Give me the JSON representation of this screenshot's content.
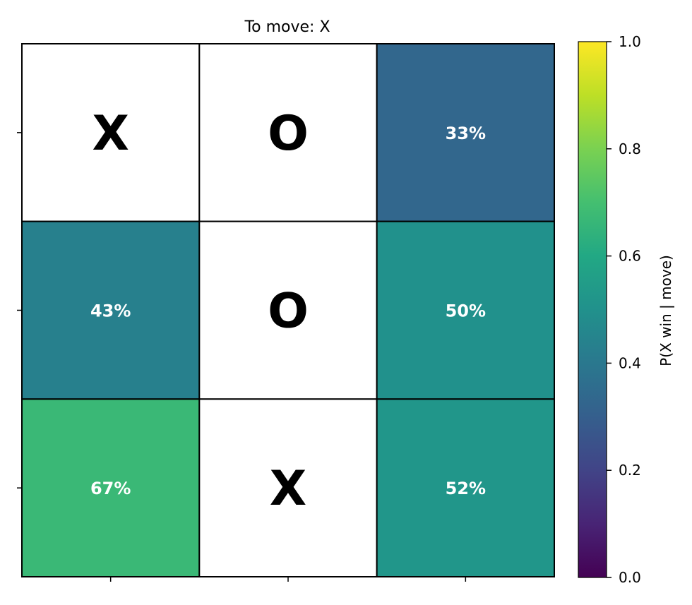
{
  "chart_data": {
    "type": "heatmap",
    "title": "To move: X",
    "rows": 3,
    "cols": 3,
    "cells": [
      {
        "row": 0,
        "col": 0,
        "piece": "X",
        "label": "",
        "value": null
      },
      {
        "row": 0,
        "col": 1,
        "piece": "O",
        "label": "",
        "value": null
      },
      {
        "row": 0,
        "col": 2,
        "piece": "",
        "label": "33%",
        "value": 0.33
      },
      {
        "row": 1,
        "col": 0,
        "piece": "",
        "label": "43%",
        "value": 0.43
      },
      {
        "row": 1,
        "col": 1,
        "piece": "O",
        "label": "",
        "value": null
      },
      {
        "row": 1,
        "col": 2,
        "piece": "",
        "label": "50%",
        "value": 0.5
      },
      {
        "row": 2,
        "col": 0,
        "piece": "",
        "label": "67%",
        "value": 0.67
      },
      {
        "row": 2,
        "col": 1,
        "piece": "X",
        "label": "",
        "value": null
      },
      {
        "row": 2,
        "col": 2,
        "piece": "",
        "label": "52%",
        "value": 0.52
      }
    ],
    "colorbar": {
      "label": "P(X win | move)",
      "range": [
        0,
        1
      ],
      "ticks": [
        "0.0",
        "0.2",
        "0.4",
        "0.6",
        "0.8",
        "1.0"
      ],
      "colormap": "viridis"
    },
    "x_tick_labels": [
      "",
      "",
      ""
    ],
    "y_tick_labels": [
      "",
      "",
      ""
    ]
  }
}
